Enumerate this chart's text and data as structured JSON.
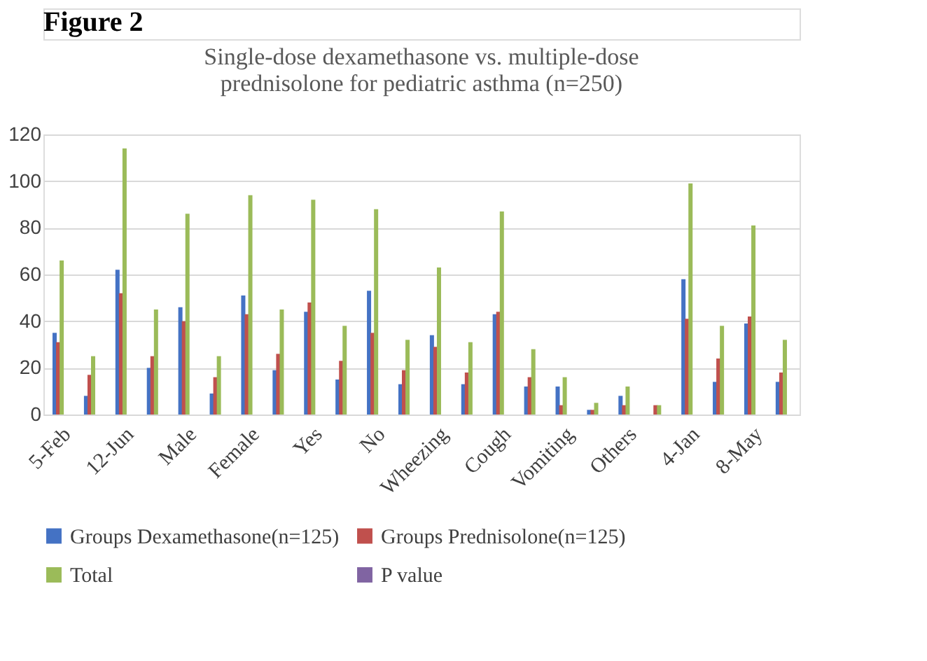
{
  "chart_data": {
    "type": "bar",
    "title": [
      "Single-dose dexamethasone vs. multiple-dose",
      "prednisolone for pediatric asthma (n=250)"
    ],
    "annotations": [
      "Figure 2"
    ],
    "categories": [
      "5-Feb",
      null,
      "12-Jun",
      null,
      "Male",
      null,
      "Female",
      null,
      "Yes",
      null,
      "No",
      null,
      "Wheezing",
      null,
      "Cough",
      null,
      "Vomiting",
      null,
      "Others",
      null,
      "4-Jan",
      null,
      "8-May",
      null
    ],
    "series": [
      {
        "name": "Groups Dexamethasone(n=125)",
        "color": "#4472c4",
        "values": [
          35,
          8,
          62,
          20,
          46,
          9,
          51,
          19,
          44,
          15,
          53,
          13,
          34,
          13,
          43,
          12,
          12,
          2,
          8,
          0,
          58,
          14,
          39,
          14
        ]
      },
      {
        "name": "Groups Prednisolone(n=125)",
        "color": "#c0504d",
        "values": [
          31,
          17,
          52,
          25,
          40,
          16,
          43,
          26,
          48,
          23,
          35,
          19,
          29,
          18,
          44,
          16,
          4,
          2,
          4,
          4,
          41,
          24,
          42,
          18
        ]
      },
      {
        "name": "Total",
        "color": "#9bbb59",
        "values": [
          66,
          25,
          114,
          45,
          86,
          25,
          94,
          45,
          92,
          38,
          88,
          32,
          63,
          31,
          87,
          28,
          16,
          5,
          12,
          4,
          99,
          38,
          81,
          32
        ]
      },
      {
        "name": "P value",
        "color": "#8064a2",
        "values": [
          null,
          null,
          null,
          null,
          null,
          null,
          null,
          null,
          null,
          null,
          null,
          null,
          null,
          null,
          null,
          null,
          null,
          null,
          null,
          null,
          null,
          null,
          null,
          null
        ]
      }
    ],
    "ylim": [
      0,
      120
    ],
    "yticks": [
      0,
      20,
      40,
      60,
      80,
      100,
      120
    ],
    "grid": "y",
    "legend": "bottom"
  }
}
